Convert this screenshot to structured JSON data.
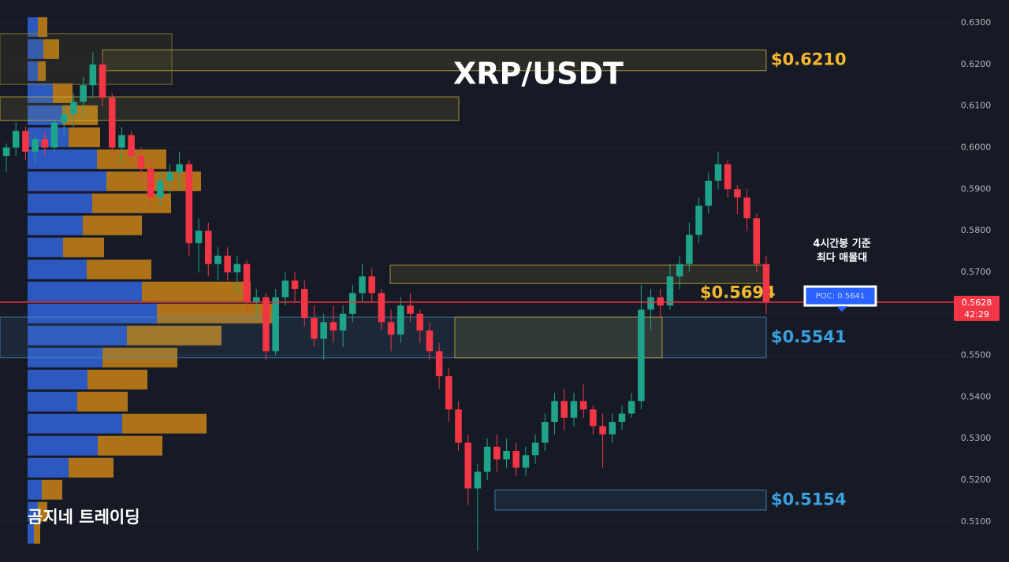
{
  "chart_data": {
    "type": "candlestick",
    "title": "XRP/USDT",
    "watermark": "곰지네 트레이딩",
    "up_color": "#1fa38a",
    "down_color": "#f23645",
    "ylim": [
      0.5003,
      0.6355
    ],
    "yticks": [
      {
        "value": 0.63,
        "label": "0.6300"
      },
      {
        "value": 0.62,
        "label": "0.6200"
      },
      {
        "value": 0.61,
        "label": "0.6100"
      },
      {
        "value": 0.6,
        "label": "0.6000"
      },
      {
        "value": 0.59,
        "label": "0.5900"
      },
      {
        "value": 0.58,
        "label": "0.5800"
      },
      {
        "value": 0.57,
        "label": "0.5700"
      },
      {
        "value": 0.56,
        "label": "0.5600"
      },
      {
        "value": 0.55,
        "label": "0.5500"
      },
      {
        "value": 0.54,
        "label": "0.5400"
      },
      {
        "value": 0.53,
        "label": "0.5300"
      },
      {
        "value": 0.52,
        "label": "0.5200"
      },
      {
        "value": 0.51,
        "label": "0.5100"
      }
    ],
    "candles": [
      [
        0.598,
        0.601,
        0.594,
        0.6
      ],
      [
        0.6,
        0.606,
        0.598,
        0.604
      ],
      [
        0.604,
        0.605,
        0.597,
        0.599
      ],
      [
        0.599,
        0.603,
        0.596,
        0.602
      ],
      [
        0.602,
        0.604,
        0.598,
        0.6
      ],
      [
        0.6,
        0.607,
        0.599,
        0.606
      ],
      [
        0.606,
        0.61,
        0.603,
        0.608
      ],
      [
        0.608,
        0.613,
        0.605,
        0.611
      ],
      [
        0.611,
        0.617,
        0.607,
        0.615
      ],
      [
        0.615,
        0.623,
        0.612,
        0.62
      ],
      [
        0.62,
        0.622,
        0.61,
        0.612
      ],
      [
        0.612,
        0.613,
        0.598,
        0.6
      ],
      [
        0.6,
        0.605,
        0.596,
        0.603
      ],
      [
        0.603,
        0.604,
        0.596,
        0.598
      ],
      [
        0.598,
        0.6,
        0.592,
        0.595
      ],
      [
        0.595,
        0.597,
        0.586,
        0.588
      ],
      [
        0.588,
        0.594,
        0.586,
        0.592
      ],
      [
        0.592,
        0.596,
        0.589,
        0.594
      ],
      [
        0.594,
        0.599,
        0.59,
        0.596
      ],
      [
        0.596,
        0.597,
        0.574,
        0.577
      ],
      [
        0.577,
        0.583,
        0.57,
        0.58
      ],
      [
        0.58,
        0.582,
        0.569,
        0.572
      ],
      [
        0.572,
        0.576,
        0.568,
        0.574
      ],
      [
        0.574,
        0.576,
        0.568,
        0.57
      ],
      [
        0.57,
        0.574,
        0.565,
        0.572
      ],
      [
        0.572,
        0.573,
        0.56,
        0.563
      ],
      [
        0.563,
        0.566,
        0.559,
        0.564
      ],
      [
        0.564,
        0.565,
        0.549,
        0.551
      ],
      [
        0.551,
        0.566,
        0.55,
        0.564
      ],
      [
        0.564,
        0.57,
        0.562,
        0.568
      ],
      [
        0.568,
        0.57,
        0.563,
        0.566
      ],
      [
        0.566,
        0.568,
        0.557,
        0.559
      ],
      [
        0.559,
        0.562,
        0.552,
        0.554
      ],
      [
        0.554,
        0.56,
        0.549,
        0.558
      ],
      [
        0.558,
        0.562,
        0.553,
        0.556
      ],
      [
        0.556,
        0.562,
        0.552,
        0.56
      ],
      [
        0.56,
        0.567,
        0.558,
        0.565
      ],
      [
        0.565,
        0.572,
        0.563,
        0.569
      ],
      [
        0.569,
        0.571,
        0.563,
        0.565
      ],
      [
        0.565,
        0.566,
        0.556,
        0.558
      ],
      [
        0.558,
        0.561,
        0.551,
        0.555
      ],
      [
        0.555,
        0.564,
        0.553,
        0.562
      ],
      [
        0.562,
        0.565,
        0.558,
        0.56
      ],
      [
        0.56,
        0.561,
        0.553,
        0.556
      ],
      [
        0.556,
        0.558,
        0.549,
        0.551
      ],
      [
        0.551,
        0.553,
        0.542,
        0.545
      ],
      [
        0.545,
        0.547,
        0.534,
        0.537
      ],
      [
        0.537,
        0.539,
        0.527,
        0.529
      ],
      [
        0.529,
        0.531,
        0.514,
        0.518
      ],
      [
        0.518,
        0.524,
        0.503,
        0.522
      ],
      [
        0.522,
        0.53,
        0.52,
        0.528
      ],
      [
        0.528,
        0.531,
        0.522,
        0.525
      ],
      [
        0.525,
        0.53,
        0.523,
        0.527
      ],
      [
        0.527,
        0.529,
        0.521,
        0.523
      ],
      [
        0.523,
        0.528,
        0.521,
        0.526
      ],
      [
        0.526,
        0.531,
        0.524,
        0.529
      ],
      [
        0.529,
        0.536,
        0.527,
        0.534
      ],
      [
        0.534,
        0.541,
        0.531,
        0.539
      ],
      [
        0.539,
        0.542,
        0.532,
        0.535
      ],
      [
        0.535,
        0.541,
        0.533,
        0.539
      ],
      [
        0.539,
        0.543,
        0.535,
        0.537
      ],
      [
        0.537,
        0.538,
        0.531,
        0.533
      ],
      [
        0.533,
        0.536,
        0.523,
        0.531
      ],
      [
        0.531,
        0.536,
        0.529,
        0.534
      ],
      [
        0.534,
        0.538,
        0.532,
        0.536
      ],
      [
        0.536,
        0.541,
        0.535,
        0.539
      ],
      [
        0.539,
        0.567,
        0.537,
        0.561
      ],
      [
        0.561,
        0.566,
        0.556,
        0.564
      ],
      [
        0.564,
        0.566,
        0.559,
        0.562
      ],
      [
        0.562,
        0.572,
        0.561,
        0.569
      ],
      [
        0.569,
        0.574,
        0.566,
        0.572
      ],
      [
        0.572,
        0.582,
        0.57,
        0.579
      ],
      [
        0.579,
        0.588,
        0.577,
        0.586
      ],
      [
        0.586,
        0.594,
        0.584,
        0.592
      ],
      [
        0.592,
        0.599,
        0.59,
        0.596
      ],
      [
        0.596,
        0.597,
        0.588,
        0.59
      ],
      [
        0.59,
        0.591,
        0.584,
        0.588
      ],
      [
        0.588,
        0.59,
        0.58,
        0.583
      ],
      [
        0.583,
        0.584,
        0.57,
        0.572
      ],
      [
        0.572,
        0.574,
        0.56,
        0.5628
      ]
    ],
    "volume_profile": {
      "buy_color": "#2f5fd0",
      "sell_color": "#c98416",
      "prices": [
        0.6287,
        0.6234,
        0.6181,
        0.6128,
        0.6075,
        0.6022,
        0.5969,
        0.5916,
        0.5863,
        0.581,
        0.5757,
        0.5704,
        0.5651,
        0.5598,
        0.5545,
        0.5492,
        0.5439,
        0.5386,
        0.5333,
        0.528,
        0.5227,
        0.5174,
        0.5121,
        0.5068
      ],
      "buy": [
        13,
        20,
        13,
        32,
        44,
        52,
        88,
        100,
        82,
        70,
        45,
        75,
        145,
        164,
        126,
        95,
        76,
        63,
        120,
        89,
        52,
        18,
        13,
        8
      ],
      "sell": [
        12,
        20,
        10,
        25,
        45,
        40,
        88,
        120,
        100,
        75,
        52,
        82,
        138,
        150,
        120,
        95,
        76,
        64,
        107,
        82,
        57,
        26,
        12,
        8
      ]
    },
    "zones": [
      {
        "top": 0.6235,
        "bottom": 0.6185,
        "color": "#c9b23a",
        "label": "$0.6210",
        "label_color": "#f5b82e"
      },
      {
        "top": 0.6274,
        "bottom": 0.6152,
        "color": "#8d7d2a"
      },
      {
        "top": 0.6122,
        "bottom": 0.6065,
        "color": "#c9b23a"
      },
      {
        "top": 0.5717,
        "bottom": 0.5673,
        "color": "#c9b23a",
        "label": "$0.5694",
        "label_color": "#f5b82e"
      },
      {
        "top": 0.5592,
        "bottom": 0.5494,
        "color": "#4a8fc4",
        "label": "$0.5541",
        "label_color": "#3aa0e0"
      },
      {
        "top": 0.5592,
        "bottom": 0.5494,
        "color": "#c9b23a"
      },
      {
        "top": 0.5176,
        "bottom": 0.5128,
        "color": "#4a8fc4",
        "label": "$0.5154",
        "label_color": "#3aa0e0"
      }
    ],
    "last_price": 0.5628,
    "countdown": "42:29",
    "poc": {
      "value": 0.5641,
      "label": "POC: 0.5641"
    },
    "annotation": [
      "4시간봉 기준",
      "최다 매물대"
    ]
  }
}
